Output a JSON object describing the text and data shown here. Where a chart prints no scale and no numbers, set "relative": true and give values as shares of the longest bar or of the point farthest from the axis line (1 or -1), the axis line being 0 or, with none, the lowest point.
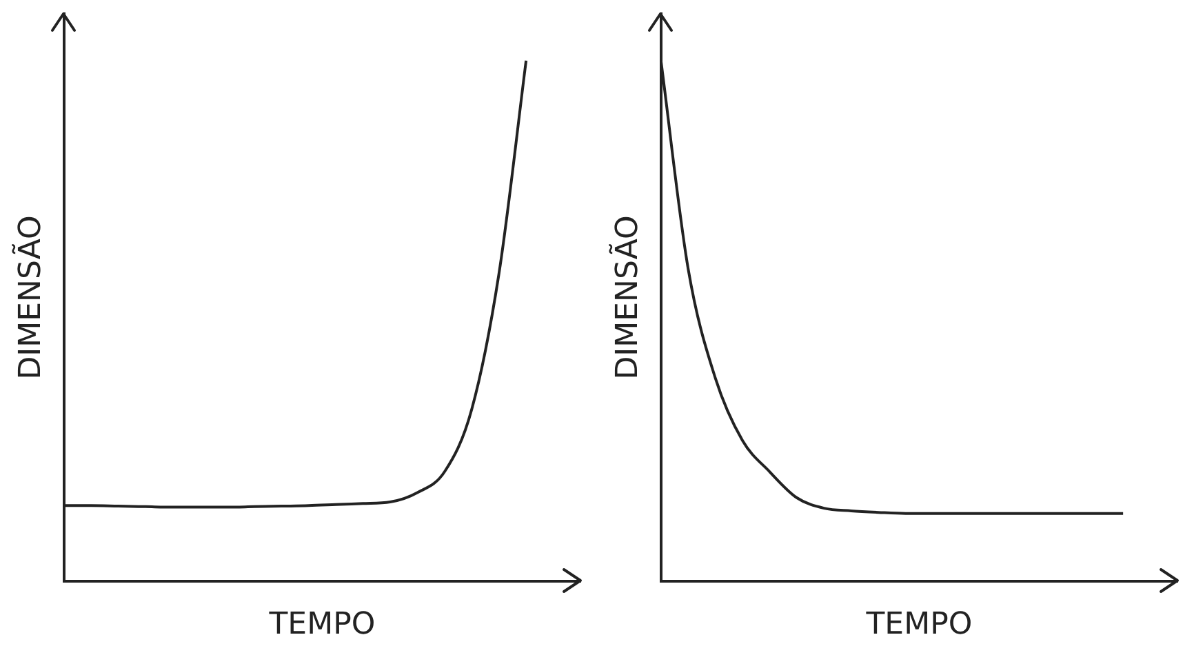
{
  "chart_data": [
    {
      "type": "line",
      "xlabel": "TEMPO",
      "ylabel": "DIMENSÃO",
      "relative": true,
      "grid": false,
      "legend": false,
      "marker": "none",
      "line_style": "solid",
      "categories": [
        null,
        null,
        null,
        null,
        null,
        null,
        null,
        null,
        null,
        null,
        null,
        null,
        null,
        null,
        null,
        null,
        null,
        null,
        null,
        null
      ],
      "series": [
        {
          "color": "#222222",
          "values": [
            0.145,
            0.145,
            0.144,
            0.143,
            0.142,
            0.142,
            0.142,
            0.143,
            0.144,
            0.145,
            0.147,
            0.149,
            0.152,
            0.17,
            0.21,
            0.33,
            0.59,
            1.0,
            null,
            null
          ]
        }
      ]
    },
    {
      "type": "line",
      "xlabel": "TEMPO",
      "ylabel": "DIMENSÃO",
      "relative": true,
      "grid": false,
      "legend": false,
      "marker": "none",
      "line_style": "solid",
      "categories": [
        null,
        null,
        null,
        null,
        null,
        null,
        null,
        null,
        null,
        null,
        null,
        null,
        null,
        null,
        null,
        null,
        null,
        null,
        null,
        null
      ],
      "series": [
        {
          "color": "#222222",
          "values": [
            1.0,
            0.6,
            0.39,
            0.27,
            0.21,
            0.16,
            0.14,
            0.135,
            0.132,
            0.13,
            0.13,
            0.13,
            0.13,
            0.13,
            0.13,
            0.13,
            0.13,
            0.13,
            null,
            null
          ]
        }
      ]
    }
  ]
}
